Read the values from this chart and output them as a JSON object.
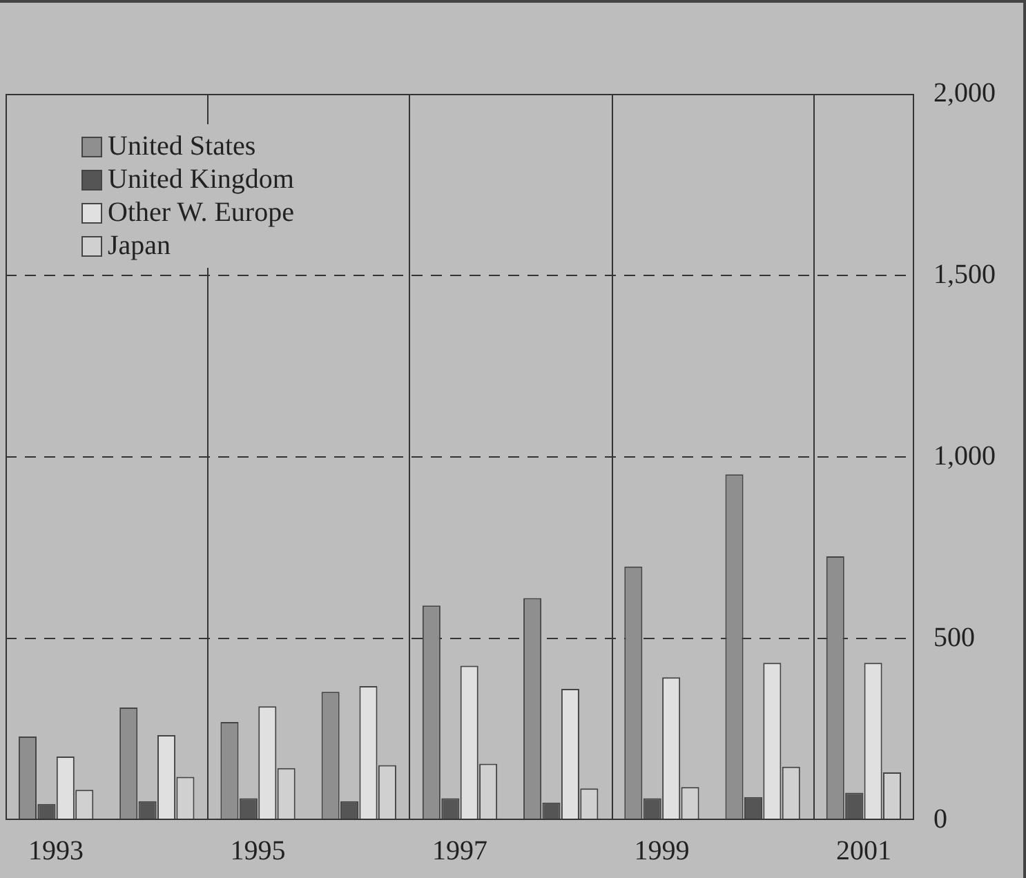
{
  "chart_data": {
    "type": "bar",
    "categories": [
      "1993",
      null,
      "1995",
      null,
      "1997",
      null,
      "1999",
      null,
      "2001"
    ],
    "series": [
      {
        "name": "United States",
        "color": "#8f8f8f",
        "values": [
          230,
          310,
          270,
          353,
          591,
          611,
          698,
          952,
          726
        ]
      },
      {
        "name": "United Kingdom",
        "color": "#555555",
        "values": [
          44,
          52,
          60,
          52,
          60,
          48,
          60,
          63,
          75
        ]
      },
      {
        "name": "Other W. Europe",
        "color": "#e0e0e0",
        "values": [
          175,
          234,
          313,
          369,
          425,
          361,
          393,
          433,
          433
        ]
      },
      {
        "name": "Japan",
        "color": "#d0d0d0",
        "values": [
          83,
          119,
          143,
          151,
          155,
          87,
          91,
          147,
          131
        ]
      }
    ],
    "ylim": [
      0,
      2000
    ],
    "yticks": [
      0,
      500,
      {
        "value": 1000,
        "label": "1,000"
      },
      {
        "value": 1500,
        "label": "1,500"
      },
      {
        "value": 2000,
        "label": "2,000"
      }
    ],
    "grid": true,
    "legend": "top left"
  }
}
